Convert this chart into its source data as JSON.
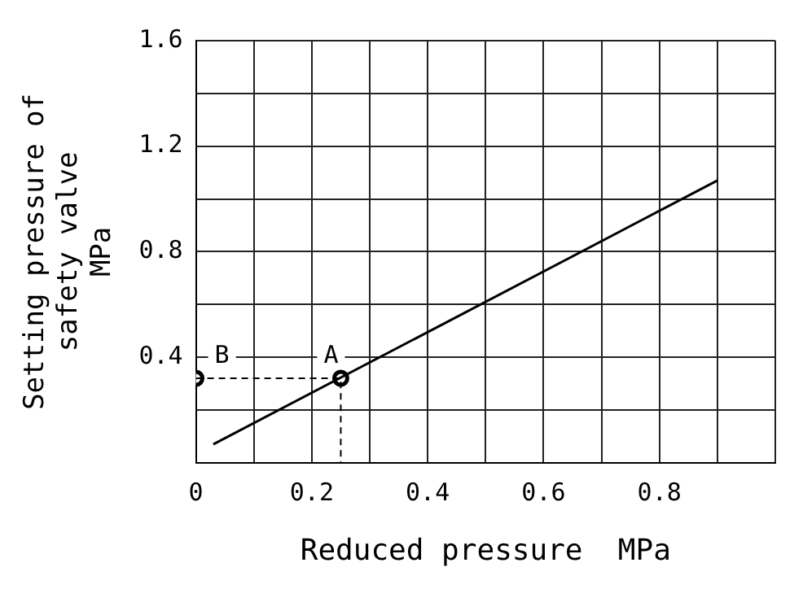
{
  "chart_data": {
    "type": "line",
    "xlabel": "Reduced pressure  MPa",
    "ylabel": "Setting pressure of\nsafety valve\nMPa",
    "xlim": [
      0,
      1.0
    ],
    "xticks": [
      0,
      {
        "value": 0.1,
        "label": null
      },
      0.2,
      {
        "value": 0.3,
        "label": null
      },
      0.4,
      {
        "value": 0.5,
        "label": null
      },
      0.6,
      {
        "value": 0.7,
        "label": null
      },
      0.8,
      {
        "value": 0.9,
        "label": null
      },
      {
        "value": 1.0,
        "label": null
      }
    ],
    "ylim": [
      0,
      1.6
    ],
    "yticks": [
      {
        "value": 0,
        "label": null
      },
      {
        "value": 0.2,
        "label": null
      },
      0.4,
      {
        "value": 0.6,
        "label": null
      },
      0.8,
      {
        "value": 1.0,
        "label": null
      },
      1.2,
      {
        "value": 1.4,
        "label": null
      },
      1.6
    ],
    "grid": true,
    "legend": false,
    "series": [
      {
        "type": "line",
        "x": [
          0.03,
          0.9
        ],
        "values": [
          0.07,
          1.07
        ],
        "color": "#000000",
        "marker": "none",
        "line_style": "solid"
      },
      {
        "type": "line",
        "x": [
          0,
          0.25,
          0.25
        ],
        "values": [
          0.32,
          0.32,
          0
        ],
        "color": "#000000",
        "marker": "none",
        "line_style": "dashed"
      },
      {
        "type": "scatter",
        "x": [
          0,
          0.25
        ],
        "values": [
          0.32,
          0.32
        ],
        "color": "#000000",
        "marker": "circle"
      }
    ],
    "annotations": [
      {
        "text": "B",
        "x": 0,
        "y": 0.32
      },
      {
        "text": "A",
        "x": 0.25,
        "y": 0.32
      }
    ]
  }
}
